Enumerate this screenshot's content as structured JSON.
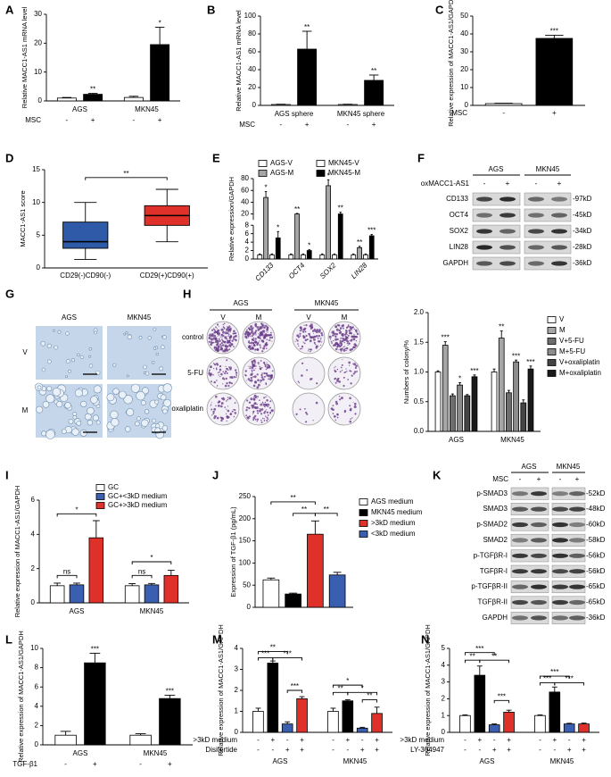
{
  "chart_data": [
    {
      "panel": "A",
      "type": "bar",
      "ylabel": "Relative MACC1-AS1 mRNA level",
      "ylim": [
        0,
        30
      ],
      "yticks": [
        0,
        10,
        20,
        30
      ],
      "categories": [
        "AGS",
        "MKN45"
      ],
      "rows": [
        {
          "label": "MSC",
          "signs": [
            "-",
            "+"
          ]
        }
      ],
      "series": [
        {
          "color": "#ffffff",
          "values": [
            1,
            1.2
          ],
          "errors": [
            0.2,
            0.4
          ]
        },
        {
          "color": "#000000",
          "values": [
            2.3,
            19.5
          ],
          "errors": [
            0.3,
            6
          ],
          "stars": [
            "**",
            "*"
          ]
        }
      ]
    },
    {
      "panel": "B",
      "type": "bar",
      "ylabel": "Relative MACC1-AS1 mRNA level",
      "ylim": [
        0,
        100
      ],
      "yticks": [
        0,
        20,
        40,
        60,
        80,
        100
      ],
      "categories": [
        "AGS sphere",
        "MKN45 sphere"
      ],
      "rows": [
        {
          "label": "MSC",
          "signs": [
            "-",
            "+"
          ]
        }
      ],
      "series": [
        {
          "color": "#ffffff",
          "values": [
            1,
            1
          ],
          "errors": [
            0.3,
            0.3
          ]
        },
        {
          "color": "#000000",
          "values": [
            63,
            28
          ],
          "errors": [
            20,
            6
          ],
          "stars": [
            "**",
            "**"
          ]
        }
      ]
    },
    {
      "panel": "C",
      "type": "bar",
      "ylabel": "Relative expression of MACC1-AS1/GAPDH",
      "ylim": [
        0,
        50
      ],
      "yticks": [
        0,
        10,
        20,
        30,
        40,
        50
      ],
      "categories": [
        null
      ],
      "rows": [
        {
          "label": "MSC",
          "signs": [
            "-",
            "+"
          ]
        }
      ],
      "series": [
        {
          "color": "#ffffff",
          "values": [
            1
          ],
          "errors": [
            0.2
          ]
        },
        {
          "color": "#000000",
          "values": [
            37.5
          ],
          "errors": [
            1.8
          ],
          "stars": [
            "***"
          ]
        }
      ]
    },
    {
      "panel": "D",
      "type": "box",
      "ylabel": "MACC1-AS1 score",
      "ylim": [
        0,
        15
      ],
      "yticks": [
        0,
        5,
        10,
        15
      ],
      "categories": [
        "CD29(-)CD90(-)",
        "CD29(+)CD90(+)"
      ],
      "boxes": [
        [
          1.3,
          3,
          4,
          7,
          10
        ],
        [
          4,
          6.5,
          8,
          9.5,
          12
        ]
      ],
      "colors": [
        "#2e5aa8",
        "#e0302a"
      ],
      "brackets": [
        "**"
      ]
    },
    {
      "panel": "E",
      "type": "bar",
      "ylabel": "Relative expression/GAPDH",
      "ylim": [
        0,
        80
      ],
      "ybreak": [
        8,
        10
      ],
      "yticks": [
        0,
        2,
        4,
        6,
        8,
        20,
        40,
        60,
        80
      ],
      "categories": [
        "CD133",
        "OCT4",
        "SOX2",
        "LIN28"
      ],
      "series": [
        {
          "name": "AGS-V",
          "color": "#ffffff",
          "values": [
            1,
            1,
            1,
            1
          ],
          "errors": [
            0.2,
            0.2,
            0.2,
            0.2
          ]
        },
        {
          "name": "AGS-M",
          "color": "#a6a6a6",
          "values": [
            48,
            20,
            68,
            2.7
          ],
          "errors": [
            10,
            1,
            10,
            0.3
          ],
          "stars": [
            "*",
            "**",
            "*",
            "**"
          ]
        },
        {
          "name": "MKN45-V",
          "color": "#ffffff",
          "values": [
            1,
            1,
            1,
            1
          ],
          "errors": [
            0.2,
            0.2,
            0.2,
            0.2
          ]
        },
        {
          "name": "MKN45-M",
          "color": "#000000",
          "values": [
            5,
            2,
            20,
            5.5
          ],
          "errors": [
            1.5,
            0.2,
            3,
            0.3
          ],
          "stars": [
            "*",
            "*",
            "**",
            "***"
          ]
        }
      ]
    },
    {
      "type": "bar",
      "ylabel": "Numbers of colony/%",
      "ylim": [
        0,
        2
      ],
      "yticks": [
        {
          "value": 0,
          "label": "0.0"
        },
        0.5,
        {
          "value": 1,
          "label": "1.0"
        },
        1.5,
        {
          "value": 2,
          "label": "2.0"
        }
      ],
      "categories": [
        "AGS",
        "MKN45"
      ],
      "series": [
        {
          "name": "V",
          "color": "#ffffff",
          "values": [
            1,
            1
          ],
          "errors": [
            0.02,
            0.05
          ]
        },
        {
          "name": "M",
          "color": "#a6a6a6",
          "values": [
            1.45,
            1.57
          ],
          "errors": [
            0.06,
            0.12
          ],
          "stars": [
            "***",
            "**"
          ]
        },
        {
          "name": "V+5-FU",
          "color": "#6e6e6e",
          "values": [
            0.6,
            0.65
          ],
          "errors": [
            0.03,
            0.04
          ]
        },
        {
          "name": "M+5-FU",
          "color": "#8c8c8c",
          "values": [
            0.78,
            1.17
          ],
          "errors": [
            0.04,
            0.03
          ],
          "stars": [
            "*",
            "***"
          ]
        },
        {
          "name": "V+oxaliplatin",
          "color": "#444444",
          "values": [
            0.6,
            0.48
          ],
          "errors": [
            0.02,
            0.05
          ]
        },
        {
          "name": "M+oxaliplatin",
          "color": "#1a1a1a",
          "values": [
            0.92,
            1.05
          ],
          "errors": [
            0.03,
            0.05
          ],
          "stars": [
            "***",
            "***"
          ]
        }
      ]
    },
    {
      "panel": "I",
      "type": "bar",
      "ylabel": "Relative expression of MACC1-AS1/GAPDH",
      "ylim": [
        0,
        6
      ],
      "yticks": [
        0,
        2,
        4,
        6
      ],
      "categories": [
        "AGS",
        "MKN45"
      ],
      "series": [
        {
          "name": "GC",
          "color": "#ffffff",
          "values": [
            1,
            1
          ],
          "errors": [
            0.15,
            0.12
          ]
        },
        {
          "name": "GC+<3kD medium",
          "color": "#3a5fb0",
          "values": [
            1.05,
            1.05
          ],
          "errors": [
            0.1,
            0.08
          ]
        },
        {
          "name": "GC+>3kD medium",
          "color": "#e0302a",
          "values": [
            3.8,
            1.6
          ],
          "errors": [
            1,
            0.3
          ]
        }
      ],
      "brackets": [
        "ns",
        "*",
        "ns",
        "*"
      ]
    },
    {
      "panel": "J",
      "type": "bar",
      "ylabel": "Expression of TGF-β1 (pg/mL)",
      "ylim": [
        0,
        250
      ],
      "yticks": [
        0,
        50,
        100,
        150,
        200,
        250
      ],
      "categories": [
        null
      ],
      "series": [
        {
          "name": "AGS medium",
          "color": "#ffffff",
          "values": [
            62
          ],
          "errors": [
            4
          ]
        },
        {
          "name": "MKN45 medium",
          "color": "#000000",
          "values": [
            30
          ],
          "errors": [
            2
          ]
        },
        {
          "name": ">3kD medium",
          "color": "#e0302a",
          "values": [
            165
          ],
          "errors": [
            30
          ]
        },
        {
          "name": "<3kD medium",
          "color": "#3a5fb0",
          "values": [
            73
          ],
          "errors": [
            6
          ]
        }
      ],
      "brackets": [
        "**",
        "**",
        "**"
      ]
    },
    {
      "panel": "L",
      "type": "bar",
      "ylabel": "Relative expression of MACC1-AS1/GAPDH",
      "ylim": [
        0,
        10
      ],
      "yticks": [
        0,
        2,
        4,
        6,
        8,
        10
      ],
      "categories": [
        "AGS",
        "MKN45"
      ],
      "rows": [
        {
          "label": "TGF-β1",
          "signs": [
            "-",
            "+"
          ]
        }
      ],
      "series": [
        {
          "color": "#ffffff",
          "values": [
            1,
            1
          ],
          "errors": [
            0.4,
            0.15
          ]
        },
        {
          "color": "#000000",
          "values": [
            8.5,
            4.8
          ],
          "errors": [
            1,
            0.35
          ],
          "stars": [
            "***",
            "***"
          ]
        }
      ]
    },
    {
      "panel": "M",
      "type": "bar",
      "ylabel": "Relative expression of MACC1-AS1/GAPDH",
      "ylim": [
        0,
        4
      ],
      "yticks": [
        0,
        1,
        2,
        3,
        4
      ],
      "categories": [
        "AGS",
        "MKN45"
      ],
      "rows": [
        {
          "label": ">3kD medium",
          "signs": [
            "-",
            "+",
            "-",
            "+"
          ]
        },
        {
          "label": "Disitertide",
          "signs": [
            "-",
            "-",
            "+",
            "+"
          ]
        }
      ],
      "series": [
        {
          "color": "#ffffff",
          "values": [
            1,
            1
          ],
          "errors": [
            0.15,
            0.15
          ]
        },
        {
          "color": "#000000",
          "values": [
            3.3,
            1.5
          ],
          "errors": [
            0.1,
            0.05
          ]
        },
        {
          "color": "#3a5fb0",
          "values": [
            0.4,
            0.2
          ],
          "errors": [
            0.1,
            0.04
          ]
        },
        {
          "color": "#e0302a",
          "values": [
            1.6,
            0.9
          ],
          "errors": [
            0.1,
            0.3
          ]
        }
      ],
      "brackets": [
        "**",
        "***",
        "***",
        "***",
        "*",
        "**",
        "*",
        "**"
      ]
    },
    {
      "panel": "N",
      "type": "bar",
      "ylabel": "Relative expression of MACC1-AS1/GAPDH",
      "ylim": [
        0,
        5
      ],
      "yticks": [
        0,
        1,
        2,
        3,
        4,
        5
      ],
      "categories": [
        "AGS",
        "MKN45"
      ],
      "rows": [
        {
          "label": ">3kD medium",
          "signs": [
            "-",
            "+",
            "-",
            "+"
          ]
        },
        {
          "label": "LY-364947",
          "signs": [
            "-",
            "-",
            "+",
            "+"
          ]
        }
      ],
      "series": [
        {
          "color": "#ffffff",
          "values": [
            1,
            1
          ],
          "errors": [
            0.04,
            0.04
          ]
        },
        {
          "color": "#000000",
          "values": [
            3.4,
            2.4
          ],
          "errors": [
            0.55,
            0.3
          ]
        },
        {
          "color": "#3a5fb0",
          "values": [
            0.45,
            0.5
          ],
          "errors": [
            0.05,
            0.04
          ]
        },
        {
          "color": "#e0302a",
          "values": [
            1.2,
            0.5
          ],
          "errors": [
            0.12,
            0.05
          ]
        }
      ],
      "brackets": [
        "***",
        "**",
        "**",
        "***",
        "***",
        "***",
        "***"
      ]
    }
  ],
  "blots": [
    {
      "panel": "F",
      "cells": [
        "AGS",
        "MKN45"
      ],
      "treatment": "oxMACC1-AS1",
      "signs": [
        "-",
        "+",
        "-",
        "+"
      ],
      "proteins": [
        "CD133",
        "OCT4",
        "SOX2",
        "LIN28",
        "GAPDH"
      ],
      "sizes": [
        "-97kD",
        "-45kD",
        "-34kD",
        "-28kD",
        "-36kD"
      ]
    },
    {
      "panel": "K",
      "cells": [
        "AGS",
        "MKN45"
      ],
      "treatment": "MSC",
      "signs": [
        "-",
        "+",
        "-",
        "+"
      ],
      "proteins": [
        "p-SMAD3",
        "SMAD3",
        "p-SMAD2",
        "SMAD2",
        "p-TGFβR-I",
        "TGFβR-I",
        "p-TGFβR-II",
        "TGFβR-II",
        "GAPDH"
      ],
      "sizes": [
        "-52kD",
        "-48kD",
        "-60kD",
        "-58kD",
        "-56kD",
        "-56kD",
        "-65kD",
        "-65kD",
        "-36kD"
      ]
    }
  ],
  "micrographs": {
    "panel": "G",
    "columns": [
      "AGS",
      "MKN45"
    ],
    "rows": [
      "V",
      "M"
    ]
  },
  "plates": {
    "panel": "H",
    "groups": [
      "AGS",
      "MKN45"
    ],
    "columns": [
      "V",
      "M",
      "V",
      "M"
    ],
    "rows": [
      "control",
      "5-FU",
      "oxaliplatin"
    ]
  }
}
